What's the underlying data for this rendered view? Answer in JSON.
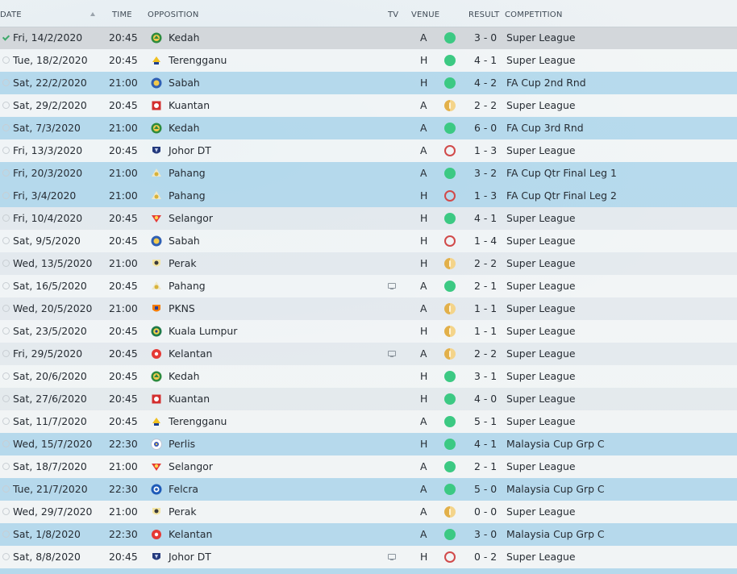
{
  "header": {
    "date": "DATE",
    "time": "TIME",
    "opposition": "OPPOSITION",
    "tv": "TV",
    "venue": "VENUE",
    "result": "RESULT",
    "competition": "COMPETITION"
  },
  "colors": {
    "win": "#3cc983",
    "loss": "#d14a4a",
    "draw": "#e2b04a",
    "cup_row": "#a8d4ea"
  },
  "fixtures": [
    {
      "date": "Fri, 14/2/2020",
      "time": "20:45",
      "opponent": "Kedah",
      "crest": "kedah-crest",
      "tv": false,
      "venue": "A",
      "result": "win",
      "score": "3 - 0",
      "competition": "Super League",
      "cup": false,
      "played": true
    },
    {
      "date": "Tue, 18/2/2020",
      "time": "20:45",
      "opponent": "Terengganu",
      "crest": "terengganu-crest",
      "tv": false,
      "venue": "H",
      "result": "win",
      "score": "4 - 1",
      "competition": "Super League",
      "cup": false,
      "played": false
    },
    {
      "date": "Sat, 22/2/2020",
      "time": "21:00",
      "opponent": "Sabah",
      "crest": "sabah-crest",
      "tv": false,
      "venue": "H",
      "result": "win",
      "score": "4 - 2",
      "competition": "FA Cup 2nd Rnd",
      "cup": true,
      "played": false
    },
    {
      "date": "Sat, 29/2/2020",
      "time": "20:45",
      "opponent": "Kuantan",
      "crest": "kuantan-crest",
      "tv": false,
      "venue": "A",
      "result": "draw",
      "score": "2 - 2",
      "competition": "Super League",
      "cup": false,
      "played": false
    },
    {
      "date": "Sat, 7/3/2020",
      "time": "21:00",
      "opponent": "Kedah",
      "crest": "kedah-crest",
      "tv": false,
      "venue": "A",
      "result": "win",
      "score": "6 - 0",
      "competition": "FA Cup 3rd Rnd",
      "cup": true,
      "played": false
    },
    {
      "date": "Fri, 13/3/2020",
      "time": "20:45",
      "opponent": "Johor DT",
      "crest": "johor-dt-crest",
      "tv": false,
      "venue": "A",
      "result": "loss",
      "score": "1 - 3",
      "competition": "Super League",
      "cup": false,
      "played": false
    },
    {
      "date": "Fri, 20/3/2020",
      "time": "21:00",
      "opponent": "Pahang",
      "crest": "pahang-crest",
      "tv": false,
      "venue": "A",
      "result": "win",
      "score": "3 - 2",
      "competition": "FA Cup Qtr Final Leg 1",
      "cup": true,
      "played": false
    },
    {
      "date": "Fri, 3/4/2020",
      "time": "21:00",
      "opponent": "Pahang",
      "crest": "pahang-crest",
      "tv": false,
      "venue": "H",
      "result": "loss",
      "score": "1 - 3",
      "competition": "FA Cup Qtr Final Leg 2",
      "cup": true,
      "played": false
    },
    {
      "date": "Fri, 10/4/2020",
      "time": "20:45",
      "opponent": "Selangor",
      "crest": "selangor-crest",
      "tv": false,
      "venue": "H",
      "result": "win",
      "score": "4 - 1",
      "competition": "Super League",
      "cup": false,
      "played": false
    },
    {
      "date": "Sat, 9/5/2020",
      "time": "20:45",
      "opponent": "Sabah",
      "crest": "sabah-crest",
      "tv": false,
      "venue": "H",
      "result": "loss",
      "score": "1 - 4",
      "competition": "Super League",
      "cup": false,
      "played": false
    },
    {
      "date": "Wed, 13/5/2020",
      "time": "21:00",
      "opponent": "Perak",
      "crest": "perak-crest",
      "tv": false,
      "venue": "H",
      "result": "draw",
      "score": "2 - 2",
      "competition": "Super League",
      "cup": false,
      "played": false
    },
    {
      "date": "Sat, 16/5/2020",
      "time": "20:45",
      "opponent": "Pahang",
      "crest": "pahang-crest",
      "tv": true,
      "venue": "A",
      "result": "win",
      "score": "2 - 1",
      "competition": "Super League",
      "cup": false,
      "played": false
    },
    {
      "date": "Wed, 20/5/2020",
      "time": "21:00",
      "opponent": "PKNS",
      "crest": "pkns-crest",
      "tv": false,
      "venue": "A",
      "result": "draw",
      "score": "1 - 1",
      "competition": "Super League",
      "cup": false,
      "played": false
    },
    {
      "date": "Sat, 23/5/2020",
      "time": "20:45",
      "opponent": "Kuala Lumpur",
      "crest": "kuala-lumpur-crest",
      "tv": false,
      "venue": "H",
      "result": "draw",
      "score": "1 - 1",
      "competition": "Super League",
      "cup": false,
      "played": false
    },
    {
      "date": "Fri, 29/5/2020",
      "time": "20:45",
      "opponent": "Kelantan",
      "crest": "kelantan-crest",
      "tv": true,
      "venue": "A",
      "result": "draw",
      "score": "2 - 2",
      "competition": "Super League",
      "cup": false,
      "played": false
    },
    {
      "date": "Sat, 20/6/2020",
      "time": "20:45",
      "opponent": "Kedah",
      "crest": "kedah-crest",
      "tv": false,
      "venue": "H",
      "result": "win",
      "score": "3 - 1",
      "competition": "Super League",
      "cup": false,
      "played": false
    },
    {
      "date": "Sat, 27/6/2020",
      "time": "20:45",
      "opponent": "Kuantan",
      "crest": "kuantan-crest",
      "tv": false,
      "venue": "H",
      "result": "win",
      "score": "4 - 0",
      "competition": "Super League",
      "cup": false,
      "played": false
    },
    {
      "date": "Sat, 11/7/2020",
      "time": "20:45",
      "opponent": "Terengganu",
      "crest": "terengganu-crest",
      "tv": false,
      "venue": "A",
      "result": "win",
      "score": "5 - 1",
      "competition": "Super League",
      "cup": false,
      "played": false
    },
    {
      "date": "Wed, 15/7/2020",
      "time": "22:30",
      "opponent": "Perlis",
      "crest": "perlis-crest",
      "tv": false,
      "venue": "H",
      "result": "win",
      "score": "4 - 1",
      "competition": "Malaysia Cup Grp C",
      "cup": true,
      "played": false
    },
    {
      "date": "Sat, 18/7/2020",
      "time": "21:00",
      "opponent": "Selangor",
      "crest": "selangor-crest",
      "tv": false,
      "venue": "A",
      "result": "win",
      "score": "2 - 1",
      "competition": "Super League",
      "cup": false,
      "played": false
    },
    {
      "date": "Tue, 21/7/2020",
      "time": "22:30",
      "opponent": "Felcra",
      "crest": "felcra-crest",
      "tv": false,
      "venue": "A",
      "result": "win",
      "score": "5 - 0",
      "competition": "Malaysia Cup Grp C",
      "cup": true,
      "played": false
    },
    {
      "date": "Wed, 29/7/2020",
      "time": "21:00",
      "opponent": "Perak",
      "crest": "perak-crest",
      "tv": false,
      "venue": "A",
      "result": "draw",
      "score": "0 - 0",
      "competition": "Super League",
      "cup": false,
      "played": false
    },
    {
      "date": "Sat, 1/8/2020",
      "time": "22:30",
      "opponent": "Kelantan",
      "crest": "kelantan-crest",
      "tv": false,
      "venue": "A",
      "result": "win",
      "score": "3 - 0",
      "competition": "Malaysia Cup Grp C",
      "cup": true,
      "played": false
    },
    {
      "date": "Sat, 8/8/2020",
      "time": "20:45",
      "opponent": "Johor DT",
      "crest": "johor-dt-crest",
      "tv": true,
      "venue": "H",
      "result": "loss",
      "score": "0 - 2",
      "competition": "Super League",
      "cup": false,
      "played": false
    }
  ]
}
